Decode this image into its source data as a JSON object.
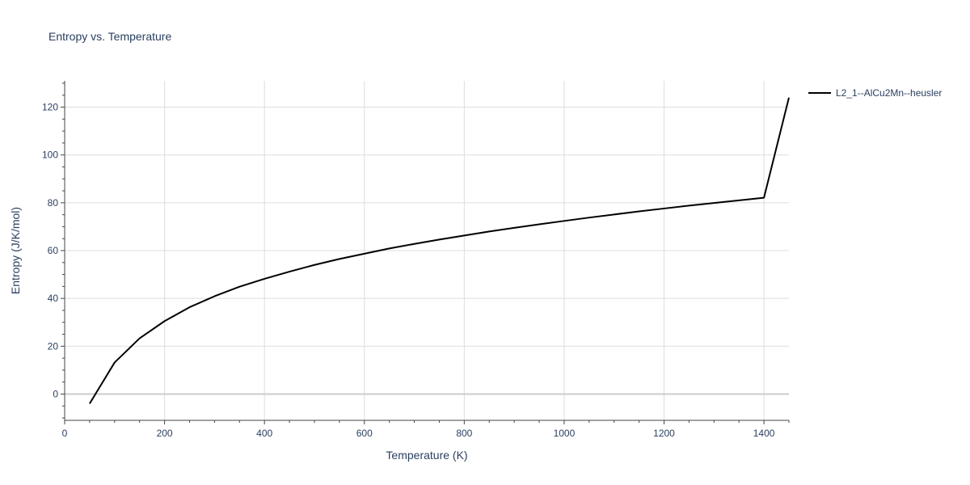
{
  "chart_data": {
    "type": "line",
    "title": "Entropy vs. Temperature",
    "xlabel": "Temperature (K)",
    "ylabel": "Entropy (J/K/mol)",
    "xlim": [
      0,
      1450
    ],
    "ylim": [
      -11,
      131
    ],
    "xticks": [
      0,
      200,
      400,
      600,
      800,
      1000,
      1200,
      1400
    ],
    "yticks": [
      0,
      20,
      40,
      60,
      80,
      100,
      120
    ],
    "grid": true,
    "legend_position": "top-right",
    "series": [
      {
        "name": "L2_1--AlCu2Mn--heusler",
        "color": "#000000",
        "x": [
          50,
          100,
          150,
          200,
          250,
          300,
          350,
          400,
          450,
          500,
          550,
          600,
          650,
          700,
          750,
          800,
          850,
          900,
          950,
          1000,
          1050,
          1100,
          1150,
          1200,
          1250,
          1300,
          1350,
          1400,
          1450
        ],
        "y": [
          -4.0,
          13.2,
          23.3,
          30.5,
          36.3,
          40.9,
          44.9,
          48.2,
          51.2,
          54.0,
          56.5,
          58.7,
          60.9,
          62.8,
          64.6,
          66.3,
          68.0,
          69.5,
          71.0,
          72.4,
          73.8,
          75.1,
          76.4,
          77.6,
          78.8,
          79.9,
          81.0,
          82.1,
          124.0
        ]
      }
    ]
  }
}
